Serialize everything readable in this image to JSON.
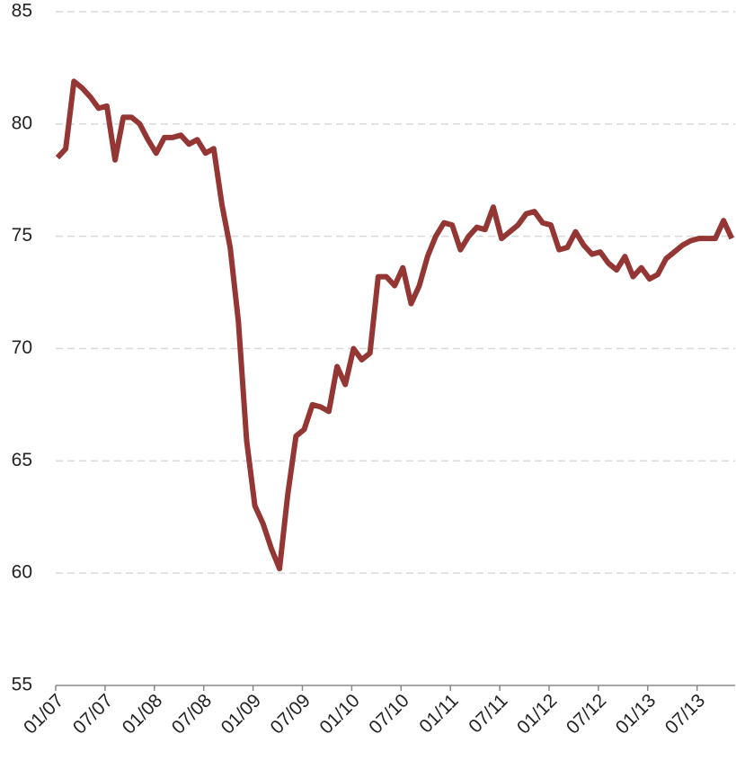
{
  "chart_data": {
    "type": "line",
    "categories": [
      "01/07",
      null,
      null,
      null,
      null,
      null,
      "07/07",
      null,
      null,
      null,
      null,
      null,
      "01/08",
      null,
      null,
      null,
      null,
      null,
      "07/08",
      null,
      null,
      null,
      null,
      null,
      "01/09",
      null,
      null,
      null,
      null,
      null,
      "07/09",
      null,
      null,
      null,
      null,
      null,
      "01/10",
      null,
      null,
      null,
      null,
      null,
      "07/10",
      null,
      null,
      null,
      null,
      null,
      "01/11",
      null,
      null,
      null,
      null,
      null,
      "07/11",
      null,
      null,
      null,
      null,
      null,
      "01/12",
      null,
      null,
      null,
      null,
      null,
      "07/12",
      null,
      null,
      null,
      null,
      null,
      "01/13",
      null,
      null,
      null,
      null,
      null,
      "07/13",
      null,
      null,
      null,
      null
    ],
    "series": [
      {
        "color": "#943634",
        "values": [
          78.5,
          78.9,
          81.9,
          81.6,
          81.2,
          80.7,
          80.8,
          78.4,
          80.3,
          80.3,
          80.0,
          79.3,
          78.7,
          79.4,
          79.4,
          79.5,
          79.1,
          79.3,
          78.7,
          78.9,
          76.4,
          74.5,
          71.2,
          65.9,
          63.0,
          62.2,
          61.1,
          60.2,
          63.5,
          66.1,
          66.4,
          67.5,
          67.4,
          67.2,
          69.2,
          68.4,
          70.0,
          69.5,
          69.8,
          73.2,
          73.2,
          72.8,
          73.6,
          72.0,
          72.8,
          74.1,
          75.0,
          75.6,
          75.5,
          74.4,
          75.0,
          75.4,
          75.3,
          76.3,
          74.9,
          75.2,
          75.5,
          76.0,
          76.1,
          75.6,
          75.5,
          74.4,
          74.5,
          75.2,
          74.6,
          74.2,
          74.3,
          73.8,
          73.5,
          74.1,
          73.2,
          73.6,
          73.1,
          73.3,
          74.0,
          74.3,
          74.6,
          74.8,
          74.9,
          74.9,
          74.9,
          75.7,
          74.9
        ]
      }
    ],
    "ylim": [
      55,
      85
    ],
    "yticks": [
      55,
      60,
      65,
      70,
      75,
      80,
      85
    ],
    "grid": true
  }
}
